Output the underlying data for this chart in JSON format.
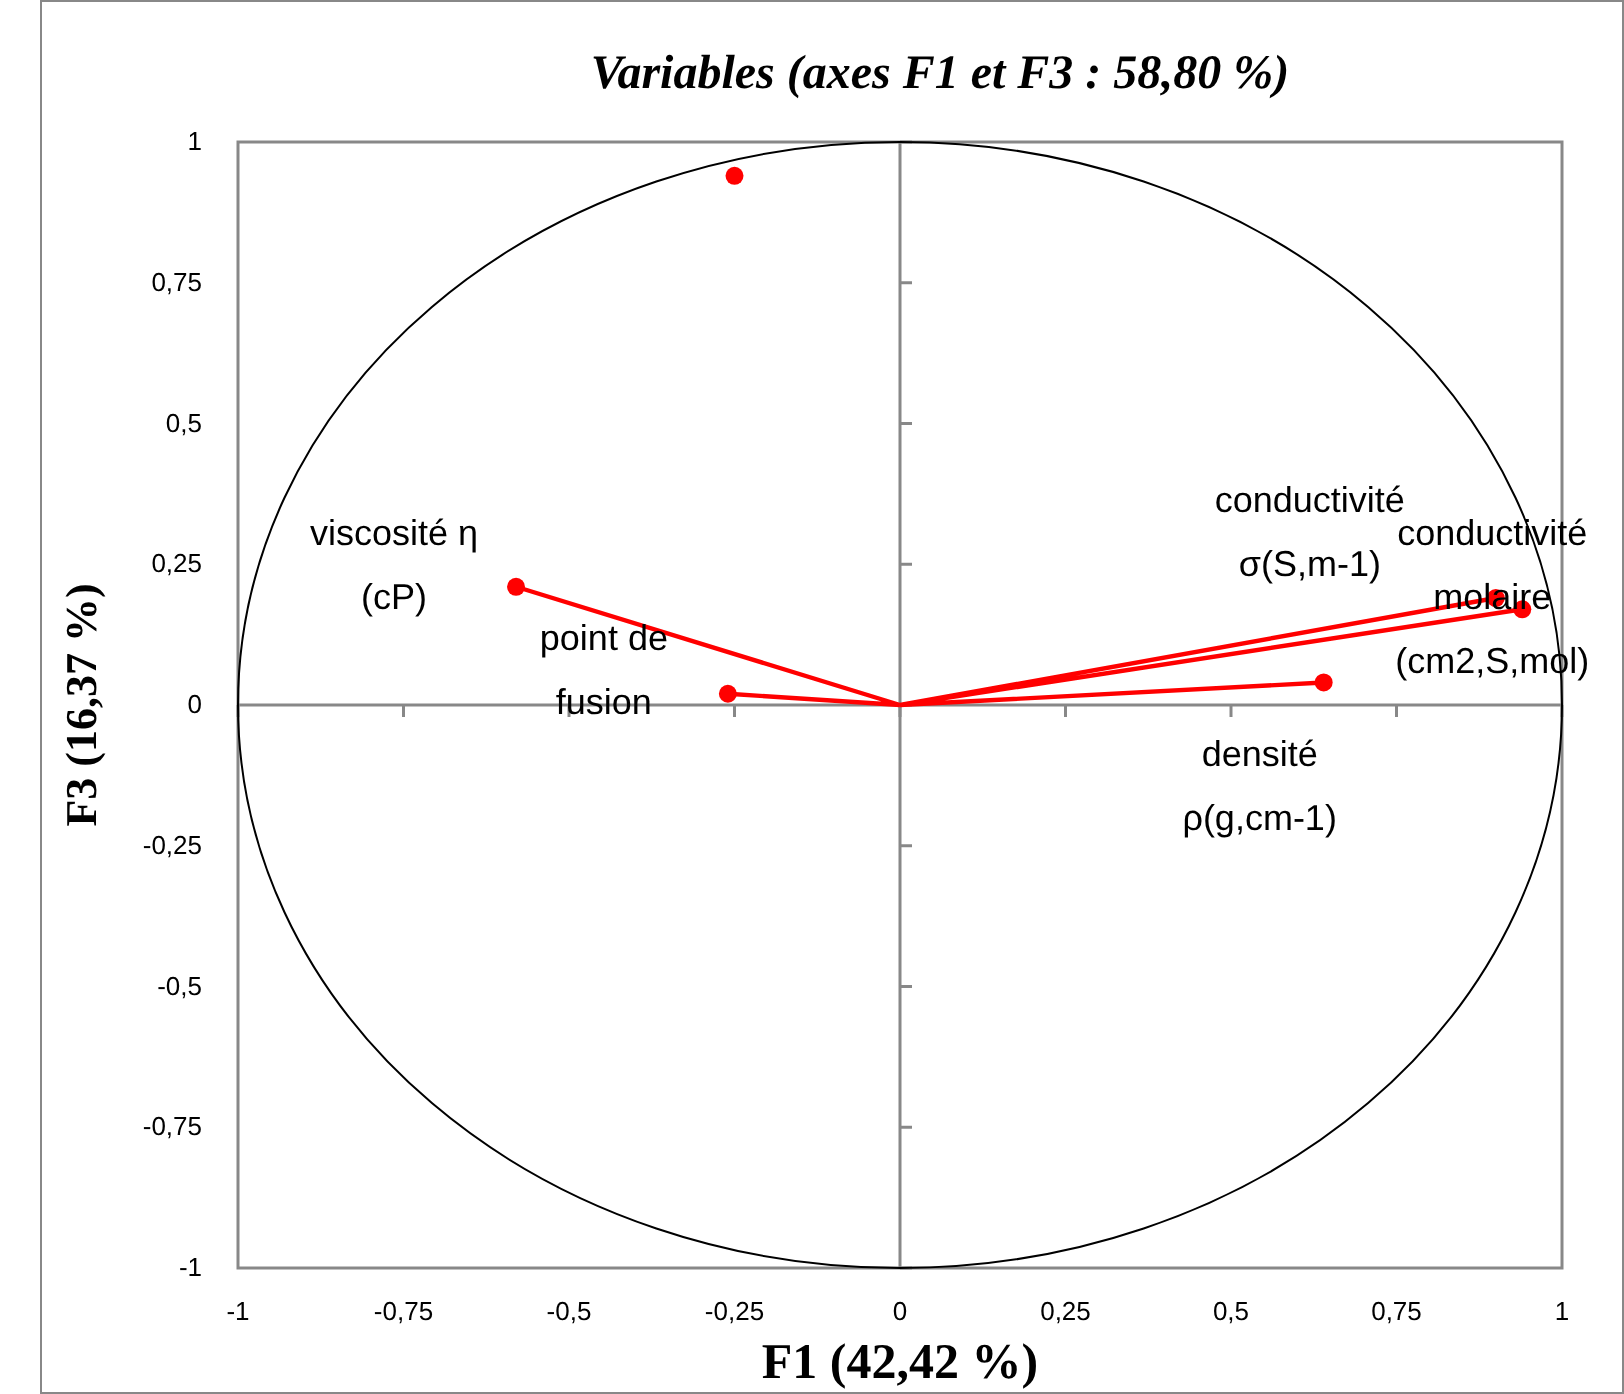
{
  "chart_data": {
    "type": "scatter",
    "title": "Variables (axes F1 et F3 : 58,80 %)",
    "xlabel": "F1 (42,42 %)",
    "ylabel": "F3 (16,37 %)",
    "xlim": [
      -1,
      1
    ],
    "ylim": [
      -1,
      1
    ],
    "xticks": [
      -1,
      {
        "value": -0.75,
        "label": "-0,75"
      },
      {
        "value": -0.5,
        "label": "-0,5"
      },
      {
        "value": -0.25,
        "label": "-0,25"
      },
      0,
      {
        "value": 0.25,
        "label": "0,25"
      },
      {
        "value": 0.5,
        "label": "0,5"
      },
      {
        "value": 0.75,
        "label": "0,75"
      },
      1
    ],
    "yticks": [
      -1,
      {
        "value": -0.75,
        "label": "-0,75"
      },
      {
        "value": -0.5,
        "label": "-0,5"
      },
      {
        "value": -0.25,
        "label": "-0,25"
      },
      0,
      {
        "value": 0.25,
        "label": "0,25"
      },
      {
        "value": 0.5,
        "label": "0,5"
      },
      {
        "value": 0.75,
        "label": "0,75"
      },
      1
    ],
    "marker": "circle",
    "series": [
      {
        "type": "line",
        "color": "#ff0000",
        "marker": "none",
        "x": [
          0,
          -0.58,
          null,
          0,
          -0.26,
          null,
          0,
          0.9,
          null,
          0,
          0.94,
          null,
          0,
          0.64
        ],
        "values": [
          0,
          0.21,
          null,
          0,
          0.02,
          null,
          0,
          0.19,
          null,
          0,
          0.17,
          null,
          0,
          0.04
        ]
      },
      {
        "type": "scatter",
        "color": "#ff0000",
        "x": [
          -0.25,
          -0.58,
          -0.26,
          0.9,
          0.94,
          0.64
        ],
        "values": [
          0.94,
          0.21,
          0.02,
          0.19,
          0.17,
          0.04
        ]
      }
    ],
    "annotations": [
      {
        "text": "viscosité η\n(cP)",
        "x": -0.58,
        "y": 0.21
      },
      {
        "text": "point de\nfusion",
        "x": -0.26,
        "y": 0.02
      },
      {
        "text": "conductivité\nσ(S,m-1)",
        "x": 0.9,
        "y": 0.19
      },
      {
        "text": "conductivité\nmolaire\n(cm2,S,mol)",
        "x": 0.94,
        "y": 0.17
      },
      {
        "text": "densité\nρ(g,cm-1)",
        "x": 0.64,
        "y": 0.04
      }
    ]
  }
}
